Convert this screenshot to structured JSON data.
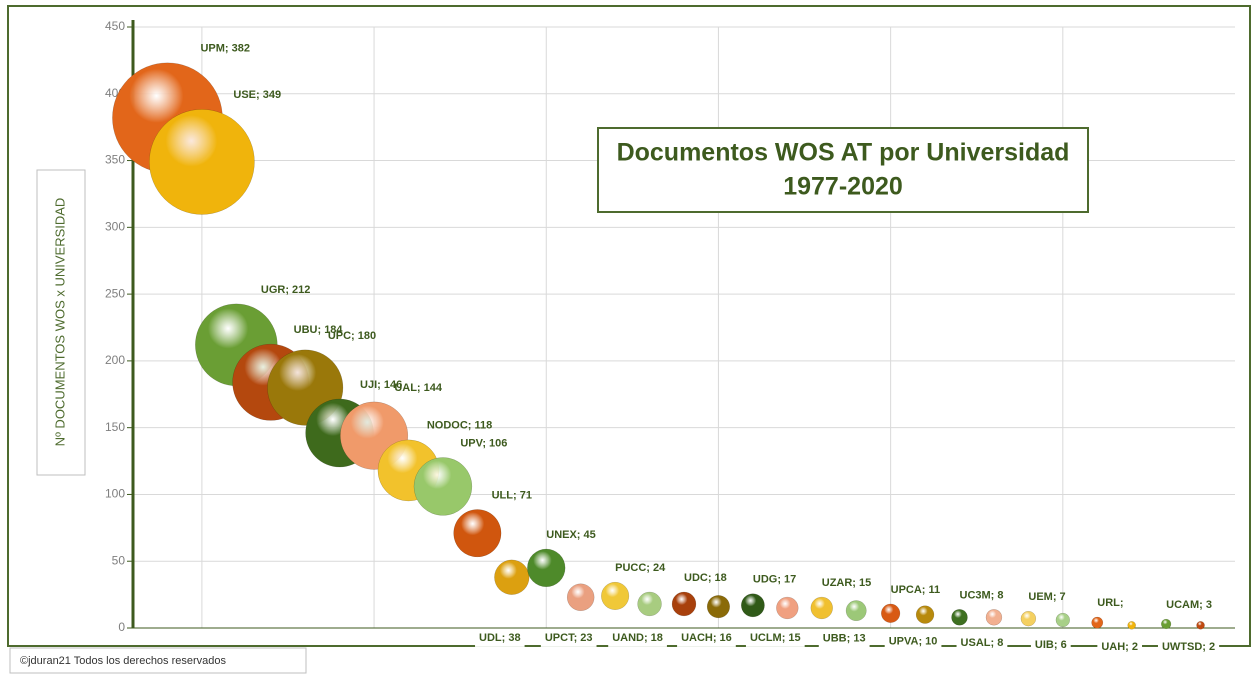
{
  "chart_data": {
    "type": "bubble",
    "title": "Documentos WOS AT por Universidad",
    "subtitle": "1977-2020",
    "y_label": "Nº DOCUMENTOS WOS x UNIVERSIDAD",
    "annotation": "©jduran21 Todos los derechos reservados",
    "x": [
      1,
      2,
      3,
      4,
      5,
      6,
      7,
      8,
      9,
      10,
      11,
      12,
      13,
      14,
      15,
      16,
      17,
      18,
      19,
      20,
      21,
      22,
      23,
      24,
      25,
      26,
      27,
      28,
      29,
      30,
      31
    ],
    "xlim": [
      0,
      32
    ],
    "xticks": [
      2,
      7,
      12,
      17,
      22,
      27
    ],
    "ylim": [
      0,
      450
    ],
    "yticks": [
      0,
      50,
      100,
      150,
      200,
      250,
      300,
      350,
      400,
      450
    ],
    "grid": true,
    "series": [
      {
        "values": [
          382,
          349,
          212,
          184,
          180,
          146,
          144,
          118,
          106,
          71,
          38,
          45,
          23,
          24,
          18,
          18,
          16,
          17,
          15,
          15,
          13,
          11,
          10,
          8,
          8,
          7,
          6,
          4,
          2,
          3,
          2
        ],
        "sizes": [
          382,
          349,
          212,
          184,
          180,
          146,
          144,
          118,
          106,
          71,
          38,
          45,
          23,
          24,
          18,
          18,
          16,
          17,
          15,
          15,
          13,
          11,
          10,
          8,
          8,
          7,
          6,
          4,
          2,
          3,
          2
        ],
        "value_labels": [
          "UPM; 382",
          "USE; 349",
          "UGR; 212",
          "UBU; 184",
          "UPC; 180",
          "UJI; 146",
          "UAL; 144",
          "NODOC; 118",
          "UPV; 106",
          "ULL; 71",
          "UDL; 38",
          "UNEX; 45",
          "UPCT; 23",
          "PUCC; 24",
          "UAND; 18",
          "UDC; 18",
          "UACH; 16",
          "UDG; 17",
          "UCLM; 15",
          "UZAR; 15",
          "UBB; 13",
          "UPCA; 11",
          "UPVA; 10",
          "UC3M; 8",
          "USAL; 8",
          "UEM; 7",
          "UIB; 6",
          "URL;",
          "UAH; 2",
          "UCAM; 3",
          "UWTSD; 2"
        ],
        "colors": [
          "#e2661a",
          "#f0b40c",
          "#6a9e34",
          "#b4480e",
          "#9a780a",
          "#3e6a1c",
          "#f09a6a",
          "#f2c22c",
          "#98c86a",
          "#d0560e",
          "#dca010",
          "#4e8a2a",
          "#eaa080",
          "#f0c838",
          "#a8cc80",
          "#a8400c",
          "#8a6a08",
          "#305a18",
          "#f0a080",
          "#f0c030",
          "#9cc878",
          "#d85a14",
          "#b88a0c",
          "#3e7020",
          "#f2b090",
          "#f4d060",
          "#a8d088",
          "#e2661a",
          "#f0b40c",
          "#6a9e34",
          "#c04a10"
        ]
      }
    ]
  }
}
